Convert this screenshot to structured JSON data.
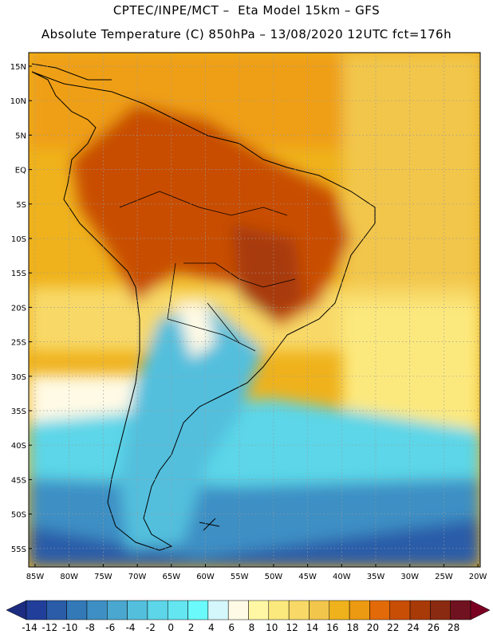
{
  "header": {
    "line1": "CPTEC/INPE/MCT –  Eta Model 15km – GFS",
    "line2": "Absolute Temperature (C) 850hPa – 13/08/2020 12UTC fct=176h"
  },
  "map": {
    "lat_ticks": [
      "15N",
      "10N",
      "5N",
      "EQ",
      "5S",
      "10S",
      "15S",
      "20S",
      "25S",
      "30S",
      "35S",
      "40S",
      "45S",
      "50S",
      "55S"
    ],
    "lon_ticks": [
      "85W",
      "80W",
      "75W",
      "70W",
      "65W",
      "60W",
      "55W",
      "50W",
      "45W",
      "40W",
      "35W",
      "30W",
      "25W",
      "20W"
    ],
    "region": "South America",
    "field": "850hPa temperature"
  },
  "colorbar": {
    "labels": [
      "-14",
      "-12",
      "-10",
      "-8",
      "-6",
      "-4",
      "-2",
      "0",
      "2",
      "4",
      "6",
      "8",
      "10",
      "12",
      "14",
      "16",
      "18",
      "20",
      "22",
      "24",
      "26",
      "28"
    ],
    "colors": [
      "#213f9a",
      "#2a5ca8",
      "#3379b8",
      "#3e8fc4",
      "#4aa7cf",
      "#53bfdd",
      "#5cd6e8",
      "#64e6f1",
      "#6afafc",
      "#d3f7fb",
      "#fffae5",
      "#fff7a3",
      "#fce97e",
      "#f8d967",
      "#f2c64b",
      "#efb21c",
      "#ec9a12",
      "#e26a08",
      "#c84e06",
      "#a83a08",
      "#8a2a10",
      "#70121f"
    ],
    "under_color": "#1c2c80",
    "over_color": "#7a0022"
  }
}
